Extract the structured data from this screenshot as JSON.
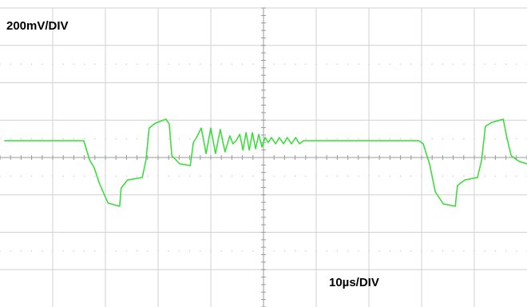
{
  "chart_data": {
    "type": "line",
    "annotations": [
      "200mV/DIV",
      "10µs/DIV"
    ],
    "xlim": [
      0,
      100
    ],
    "ylim": [
      -800,
      800
    ],
    "series": [
      {
        "color": "#33dd33",
        "x": [
          0.8,
          15.9,
          17.0,
          17.9,
          18.9,
          20.5,
          22.7,
          23.0,
          24.2,
          27.0,
          27.7,
          28.3,
          29.5,
          31.5,
          32.1,
          32.6,
          34.1,
          36.1,
          36.7,
          37.3,
          38.2,
          39.1,
          40.0,
          40.9,
          41.8,
          42.7,
          43.6,
          44.2,
          44.8,
          45.5,
          46.1,
          46.7,
          47.3,
          47.9,
          48.5,
          49.1,
          49.7,
          50.3,
          50.9,
          51.5,
          52.3,
          53.0,
          53.8,
          54.5,
          55.3,
          56.1,
          56.8,
          57.6,
          79.5,
          80.3,
          81.5,
          82.6,
          84.1,
          86.4,
          86.8,
          88.2,
          90.6,
          91.4,
          92.1,
          93.3,
          95.5,
          96.1,
          97.0,
          98.5,
          100
        ],
        "values": [
          90,
          90,
          -13,
          -56,
          -141,
          -244,
          -261,
          -163,
          -120,
          -107,
          -13,
          158,
          184,
          205,
          180,
          9,
          -34,
          -43,
          81,
          107,
          158,
          21,
          158,
          21,
          150,
          30,
          116,
          73,
          90,
          124,
          39,
          133,
          39,
          133,
          47,
          124,
          56,
          107,
          81,
          107,
          73,
          107,
          73,
          107,
          73,
          107,
          73,
          90,
          90,
          73,
          -34,
          -184,
          -248,
          -261,
          -150,
          -120,
          -107,
          -13,
          167,
          188,
          205,
          116,
          9,
          -21,
          -34
        ]
      }
    ]
  }
}
